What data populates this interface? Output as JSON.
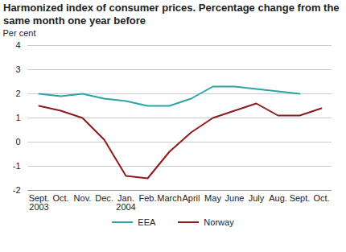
{
  "chart_data": {
    "type": "line",
    "title": "Harmonized index of consumer prices. Percentage change from the same month one year before",
    "y_label": "Per cent",
    "categories": [
      "Sept. 2003",
      "Oct.",
      "Nov.",
      "Dec.",
      "Jan. 2004",
      "Feb.",
      "March",
      "April",
      "May",
      "June",
      "July",
      "Aug.",
      "Sept.",
      "Oct."
    ],
    "series": [
      {
        "name": "EEA",
        "color": "#2ea3a6",
        "values": [
          2.0,
          1.9,
          2.0,
          1.8,
          1.7,
          1.5,
          1.5,
          1.8,
          2.3,
          2.3,
          2.2,
          2.1,
          2.0,
          null
        ]
      },
      {
        "name": "Norway",
        "color": "#8b1c1c",
        "values": [
          1.5,
          1.3,
          1.0,
          0.1,
          -1.4,
          -1.5,
          -0.4,
          0.4,
          1.0,
          1.3,
          1.6,
          1.1,
          1.1,
          1.4
        ]
      }
    ],
    "ylim": [
      -2,
      4
    ],
    "yticks": [
      -2,
      -1,
      0,
      1,
      2,
      3,
      4
    ],
    "grid": true,
    "legend": "bottom"
  }
}
